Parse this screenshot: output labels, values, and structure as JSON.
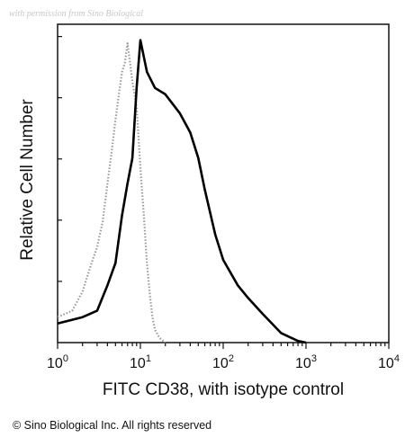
{
  "watermark": "with permission from Sino Biological",
  "copyright": "© Sino Biological Inc. All rights reserved",
  "chart_data": {
    "type": "line",
    "title": "",
    "xlabel": "FITC CD38, with isotype control",
    "ylabel": "Relative Cell Number",
    "x_scale": "log",
    "xlim": [
      1,
      10000
    ],
    "ylim": [
      0,
      100
    ],
    "x_ticks": [
      {
        "base": "10",
        "exp": "0",
        "value": 1
      },
      {
        "base": "10",
        "exp": "1",
        "value": 10
      },
      {
        "base": "10",
        "exp": "2",
        "value": 100
      },
      {
        "base": "10",
        "exp": "3",
        "value": 1000
      },
      {
        "base": "10",
        "exp": "4",
        "value": 10000
      }
    ],
    "grid": false,
    "series": [
      {
        "role": "isotype control",
        "style": "dotted",
        "color": "#9a9a9a",
        "x": [
          1.0,
          1.5,
          2.0,
          2.5,
          3.0,
          3.5,
          4.0,
          4.5,
          5.0,
          5.5,
          6.0,
          6.5,
          7.0,
          7.5,
          8.0,
          9.0,
          10.0,
          11.0,
          12.0,
          13.0,
          14.0,
          15.0,
          17.0,
          20.0
        ],
        "y": [
          8,
          10,
          16,
          24,
          30,
          38,
          50,
          60,
          70,
          78,
          85,
          88,
          94,
          88,
          82,
          74,
          55,
          40,
          25,
          15,
          8,
          4,
          1.5,
          0
        ]
      },
      {
        "role": "CD38",
        "style": "solid",
        "color": "#000000",
        "x": [
          1.0,
          2.0,
          3.0,
          4.0,
          5.0,
          6.0,
          7.0,
          8.0,
          9.0,
          10.0,
          12.0,
          15.0,
          20.0,
          30.0,
          40.0,
          50.0,
          60.0,
          80.0,
          100.0,
          150.0,
          200.0,
          300.0,
          500.0,
          800.0,
          1000.0
        ],
        "y": [
          6,
          8,
          10,
          18,
          25,
          40,
          50,
          58,
          80,
          95,
          85,
          80,
          78,
          72,
          66,
          58,
          48,
          34,
          26,
          18,
          14,
          9,
          3,
          0.5,
          0
        ]
      }
    ]
  }
}
